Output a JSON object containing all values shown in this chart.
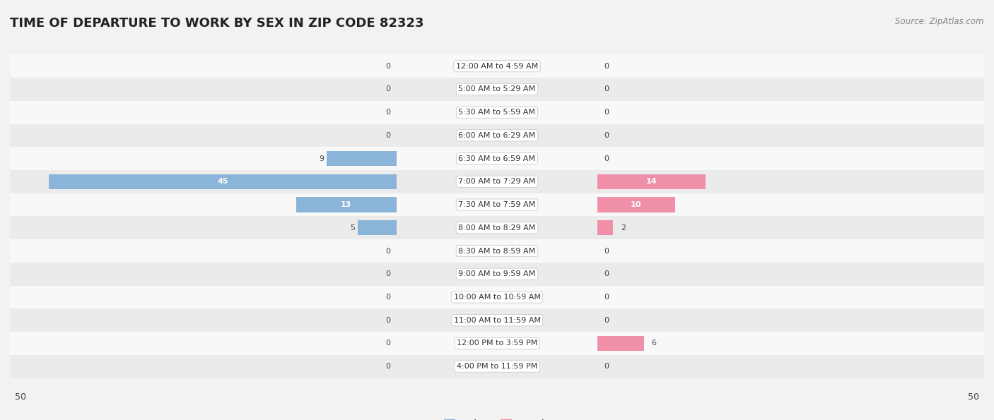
{
  "title": "TIME OF DEPARTURE TO WORK BY SEX IN ZIP CODE 82323",
  "source": "Source: ZipAtlas.com",
  "categories": [
    "12:00 AM to 4:59 AM",
    "5:00 AM to 5:29 AM",
    "5:30 AM to 5:59 AM",
    "6:00 AM to 6:29 AM",
    "6:30 AM to 6:59 AM",
    "7:00 AM to 7:29 AM",
    "7:30 AM to 7:59 AM",
    "8:00 AM to 8:29 AM",
    "8:30 AM to 8:59 AM",
    "9:00 AM to 9:59 AM",
    "10:00 AM to 10:59 AM",
    "11:00 AM to 11:59 AM",
    "12:00 PM to 3:59 PM",
    "4:00 PM to 11:59 PM"
  ],
  "male_values": [
    0,
    0,
    0,
    0,
    9,
    45,
    13,
    5,
    0,
    0,
    0,
    0,
    0,
    0
  ],
  "female_values": [
    0,
    0,
    0,
    0,
    0,
    14,
    10,
    2,
    0,
    0,
    0,
    0,
    6,
    0
  ],
  "male_color": "#8ab4d8",
  "female_color": "#f090a8",
  "bar_text_inside": "#ffffff",
  "bar_text_outside": "#444444",
  "axis_max": 50,
  "bg_color": "#f2f2f2",
  "row_colors": [
    "#f8f8f8",
    "#ebebeb"
  ],
  "title_fontsize": 13,
  "source_fontsize": 8.5,
  "category_fontsize": 8,
  "value_fontsize": 8,
  "legend_fontsize": 9,
  "axis_tick_fontsize": 9,
  "bar_height": 0.65
}
